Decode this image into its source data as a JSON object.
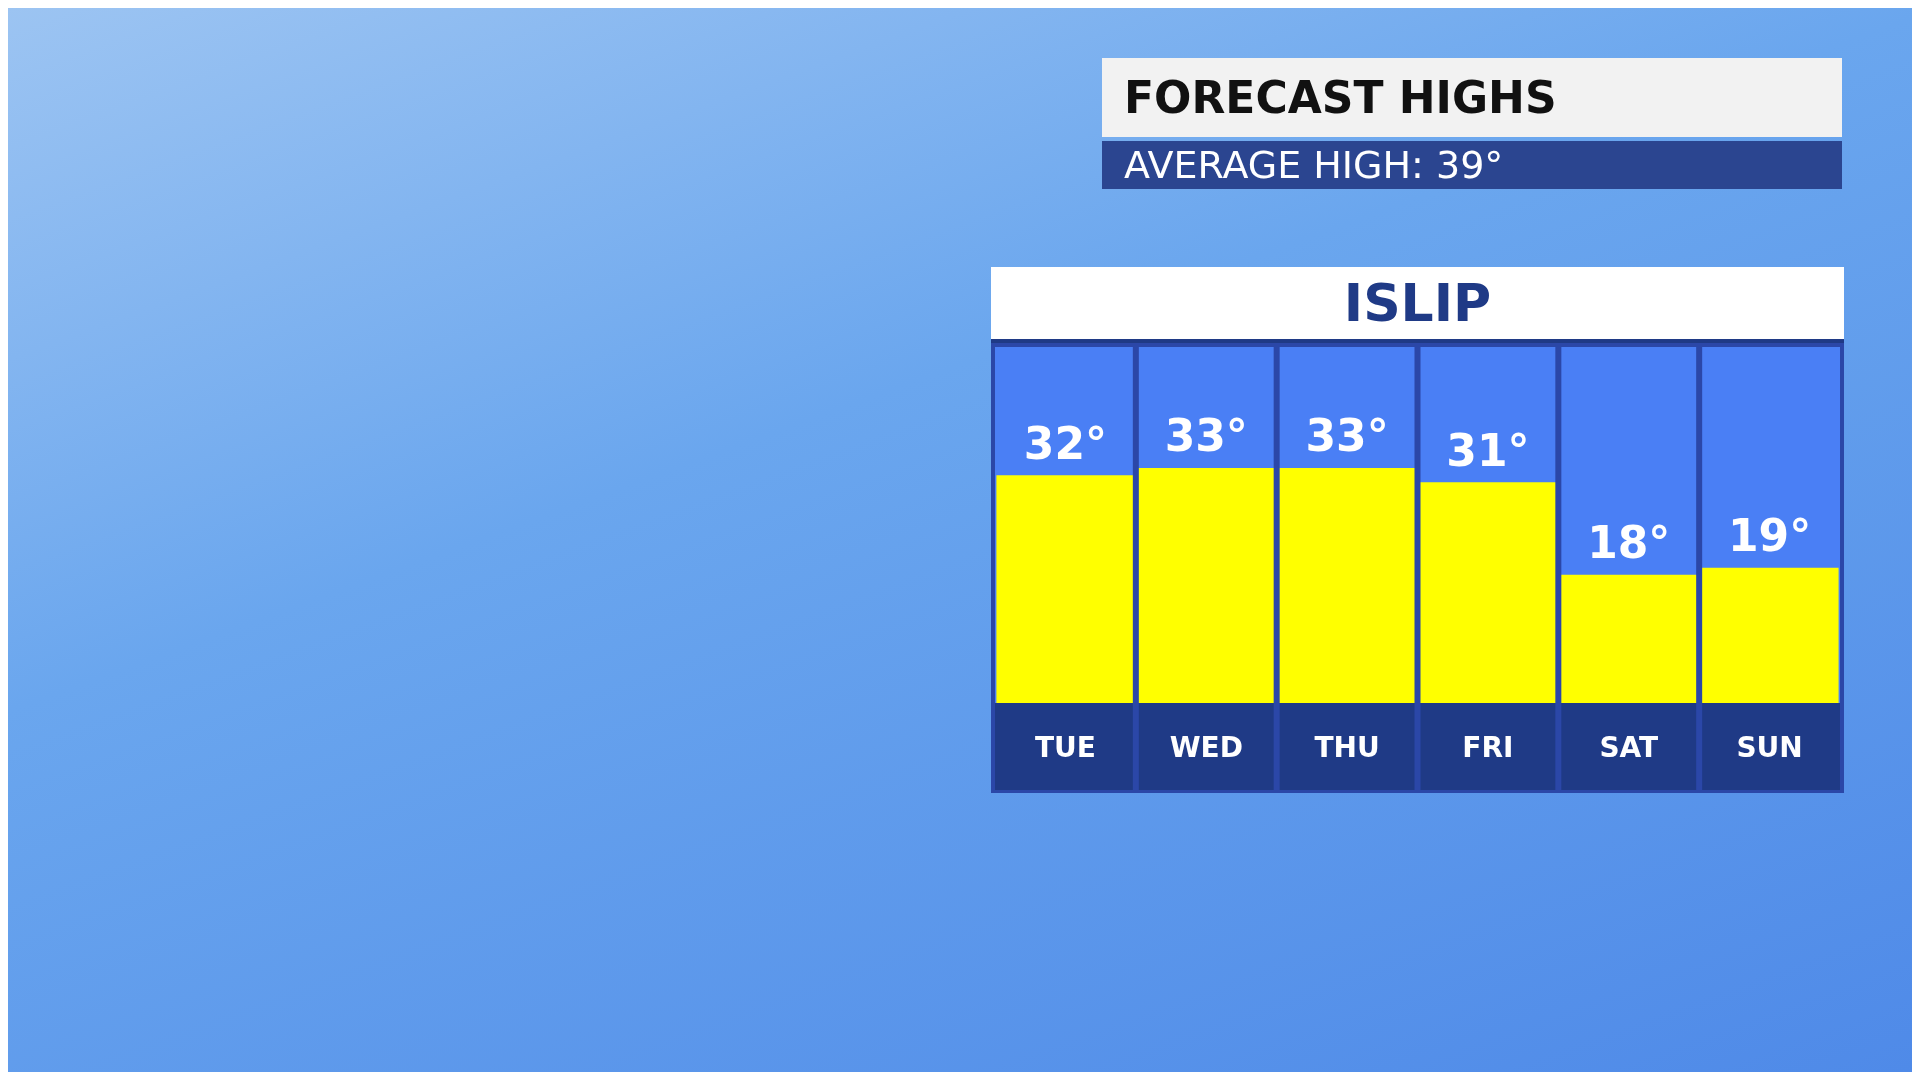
{
  "chart_data": {
    "type": "bar",
    "title": "FORECAST HIGHS",
    "subtitle": "AVERAGE HIGH: 39°",
    "annotations": [
      "ISLIP"
    ],
    "categories": [
      "TUE",
      "WED",
      "THU",
      "FRI",
      "SAT",
      "SUN"
    ],
    "values": [
      32,
      33,
      33,
      31,
      18,
      19
    ],
    "value_labels": [
      "32°",
      "33°",
      "33°",
      "31°",
      "18°",
      "19°"
    ],
    "color": "#ffff00",
    "grid": false,
    "legend": false
  }
}
